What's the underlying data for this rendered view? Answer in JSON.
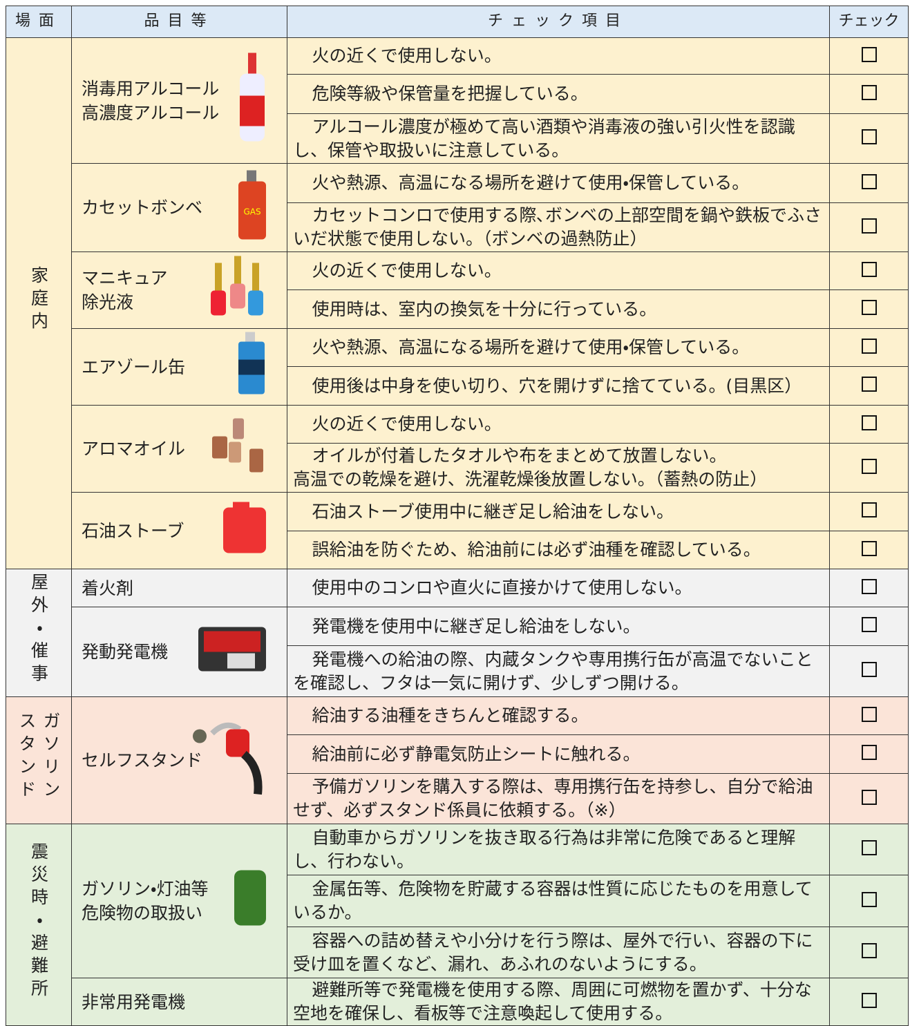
{
  "header": {
    "scene": "場面",
    "item": "品目等",
    "check_item": "チェック項目",
    "check": "チェック"
  },
  "sections": [
    {
      "scene": "家庭内",
      "items": [
        {
          "name": "消毒用アルコール\n高濃度アルコール",
          "checks": [
            "火の近くで使用しない。",
            "危険等級や保管量を把握している。",
            "アルコール濃度が極めて高い酒類や消毒液の強い引火性を認識し、保管や取扱いに注意している。"
          ]
        },
        {
          "name": "カセットボンベ",
          "checks": [
            "火や熱源、高温になる場所を避けて使用・保管している。",
            "カセットコンロで使用する際､ボンベの上部空間を鍋や鉄板でふさいだ状態で使用しない。（ボンベの過熱防止）"
          ]
        },
        {
          "name": "マニキュア\n除光液",
          "checks": [
            "火の近くで使用しない。",
            "使用時は、室内の換気を十分に行っている。"
          ]
        },
        {
          "name": "エアゾール缶",
          "checks": [
            "火や熱源、高温になる場所を避けて使用・保管している。",
            "使用後は中身を使い切り、穴を開けずに捨てている。(目黒区）"
          ]
        },
        {
          "name": "アロマオイル",
          "checks": [
            "火の近くで使用しない。",
            "オイルが付着したタオルや布をまとめて放置しない。\n高温での乾燥を避け、洗濯乾燥後放置しない。（蓄熱の防止）"
          ]
        },
        {
          "name": "石油ストーブ",
          "checks": [
            "石油ストーブ使用中に継ぎ足し給油をしない。",
            "誤給油を防ぐため、給油前には必ず油種を確認している。"
          ]
        }
      ]
    },
    {
      "scene": "屋外・催事",
      "items": [
        {
          "name": "着火剤",
          "checks": [
            "使用中のコンロや直火に直接かけて使用しない。"
          ]
        },
        {
          "name": "発動発電機",
          "checks": [
            "発電機を使用中に継ぎ足し給油をしない。",
            "発電機への給油の際、内蔵タンクや専用携行缶が高温でないことを確認し、フタは一気に開けず、少しずつ開ける。"
          ]
        }
      ]
    },
    {
      "scene": "ガソリン\nスタンド",
      "items": [
        {
          "name": "セルフスタンド",
          "checks": [
            "給油する油種をきちんと確認する。",
            "給油前に必ず静電気防止シートに触れる。",
            "予備ガソリンを購入する際は、専用携行缶を持参し、自分で給油せず、必ずスタンド係員に依頼する。（※）"
          ]
        }
      ]
    },
    {
      "scene": "震災時・避難所",
      "items": [
        {
          "name": "ガソリン・灯油等\n危険物の取扱い",
          "checks": [
            "自動車からガソリンを抜き取る行為は非常に危険であると理解し、行わない。",
            "金属缶等、危険物を貯蔵する容器は性質に応じたものを用意しているか。",
            "容器への詰め替えや小分けを行う際は、屋外で行い、容器の下に受け皿を置くなど、漏れ、あふれのないようにする。"
          ]
        },
        {
          "name": "非常用発電機",
          "checks": [
            "避難所等で発電機を使用する際、周囲に可燃物を置かず、十分な空地を確保し、看板等で注意喚起して使用する。"
          ]
        }
      ]
    }
  ]
}
